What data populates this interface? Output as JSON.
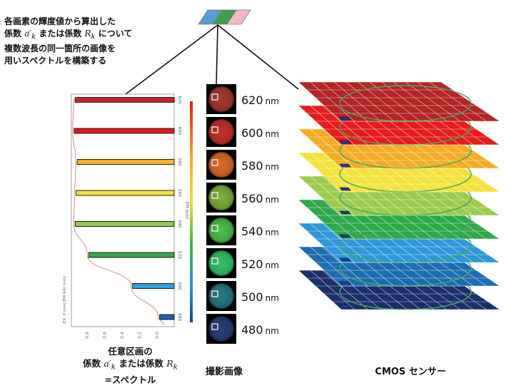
{
  "captions": {
    "top_note": {
      "line1": "各画素の輝度値から算出した",
      "line2a": "係数 ",
      "line2_coef_a": "a′",
      "line2_sub_a": "k",
      "line2b": " または係数 ",
      "line2_coef_r": "R",
      "line2_sub_r": "k",
      "line2c": " について",
      "line3": "複数波長の同一箇所の画像を",
      "line4": "用いスペクトルを構築する"
    },
    "spectrum": {
      "line1": "任意区画の",
      "line2a": "係数 ",
      "coef_a": "a′",
      "sub_a": "k",
      "line2b": " または係数 ",
      "coef_r": "R",
      "sub_r": "k",
      "line3": "=スペクトル"
    },
    "images": "撮影画像",
    "sensor": "CMOS センサー"
  },
  "wavelengths": [
    {
      "label": "620",
      "color": "#c1272d",
      "value": 0.95
    },
    {
      "label": "600",
      "color": "#e01a1a",
      "value": 0.96
    },
    {
      "label": "580",
      "color": "#f6b628",
      "value": 0.93
    },
    {
      "label": "560",
      "color": "#f4e23a",
      "value": 0.94
    },
    {
      "label": "540",
      "color": "#93c84a",
      "value": 0.95
    },
    {
      "label": "520",
      "color": "#36a84a",
      "value": 0.82
    },
    {
      "label": "500",
      "color": "#2f9fd8",
      "value": 0.4
    },
    {
      "label": "480",
      "color": "#1f5fae",
      "value": 0.14
    }
  ],
  "unit": "nm",
  "images": [
    {
      "wavelength": "620",
      "center": "#a83a30",
      "edge": "#3a0e0a"
    },
    {
      "wavelength": "600",
      "center": "#c8322a",
      "edge": "#4a0a08"
    },
    {
      "wavelength": "580",
      "center": "#e06a28",
      "edge": "#5a1c06"
    },
    {
      "wavelength": "560",
      "center": "#7fb23a",
      "edge": "#1e3a08"
    },
    {
      "wavelength": "540",
      "center": "#4fc04a",
      "edge": "#0c3a0e"
    },
    {
      "wavelength": "520",
      "center": "#36c46a",
      "edge": "#083a1a"
    },
    {
      "wavelength": "500",
      "center": "#2a7a86",
      "edge": "#061e24"
    },
    {
      "wavelength": "480",
      "center": "#2a3e7a",
      "edge": "#050a1e"
    }
  ],
  "sensor_layers": [
    {
      "fill": "#b52525"
    },
    {
      "fill": "#e81c1c"
    },
    {
      "fill": "#f4ad24"
    },
    {
      "fill": "#f4e23a"
    },
    {
      "fill": "#9ccb4c"
    },
    {
      "fill": "#2ea84a"
    },
    {
      "fill": "#2e98d8"
    },
    {
      "fill": "#1d6cb0"
    },
    {
      "fill": "#1a2f6a"
    }
  ],
  "icon_swatches": [
    "#5b9bd5",
    "#3ea04a",
    "#f4b6c2"
  ],
  "chart_axes": {
    "right_label": "EM (nm)",
    "right_ticks": [
      "620",
      "600",
      "580",
      "560",
      "540",
      "520",
      "500",
      "480"
    ],
    "left_label": "EX: 0 (nm) EM 400 (nm)",
    "bottom_ticks": [
      "0.8",
      "0.6",
      "0.4",
      "0.2",
      "0.0"
    ]
  },
  "colors": {
    "grid": "#ffffff",
    "ellipse": "#43a85a",
    "curve": "#c8785a",
    "line": "#111111",
    "frame": "#888888"
  }
}
